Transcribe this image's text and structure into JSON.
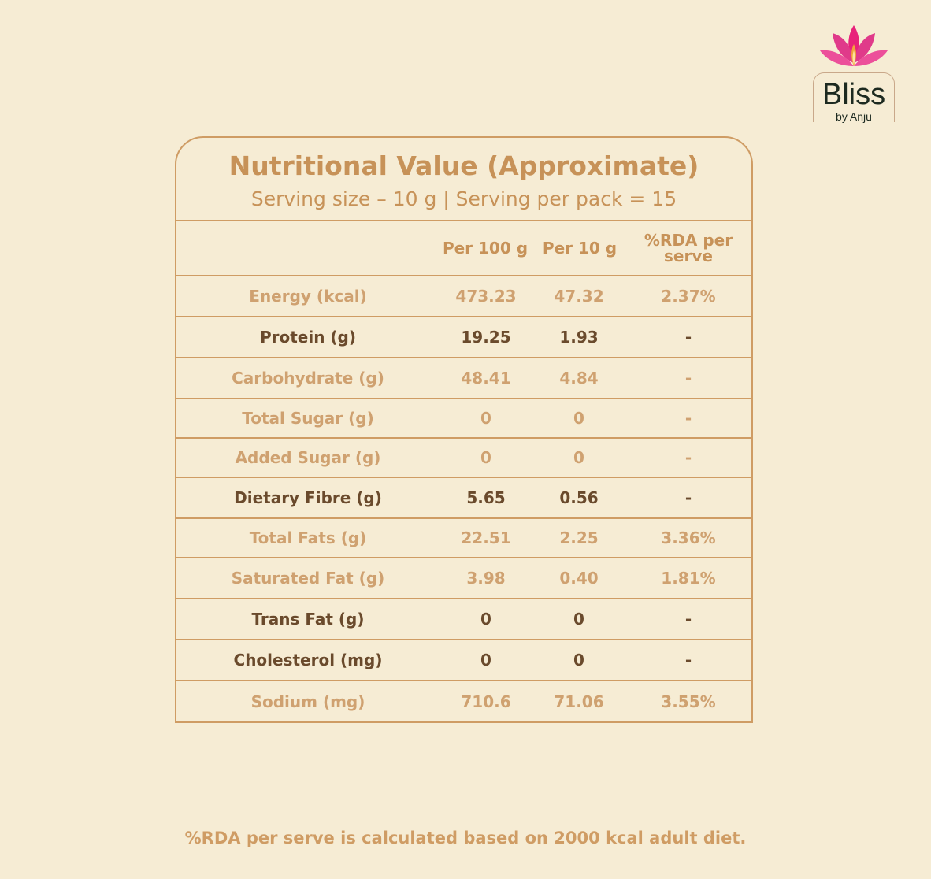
{
  "brand": {
    "name": "Bliss",
    "tagline": "by Anju",
    "colors": {
      "lotus": "#e8227a",
      "flame": "#f2a63a"
    }
  },
  "panel": {
    "title": "Nutritional Value (Approximate)",
    "subtitle": "Serving size – 10 g | Serving per pack = 15"
  },
  "table": {
    "headers": [
      "",
      "Per 100 g",
      "Per 10 g",
      "%RDA per serve"
    ],
    "rows": [
      {
        "nutrient": "Energy (kcal)",
        "per100": "473.23",
        "per10": "47.32",
        "rda": "2.37%",
        "emphasis": false
      },
      {
        "nutrient": "Protein (g)",
        "per100": "19.25",
        "per10": "1.93",
        "rda": "-",
        "emphasis": true
      },
      {
        "nutrient": "Carbohydrate (g)",
        "per100": "48.41",
        "per10": "4.84",
        "rda": "-",
        "emphasis": false
      },
      {
        "nutrient": "Total Sugar (g)",
        "per100": "0",
        "per10": "0",
        "rda": "-",
        "emphasis": false
      },
      {
        "nutrient": "Added Sugar (g)",
        "per100": "0",
        "per10": "0",
        "rda": "-",
        "emphasis": false
      },
      {
        "nutrient": "Dietary Fibre (g)",
        "per100": "5.65",
        "per10": "0.56",
        "rda": "-",
        "emphasis": true
      },
      {
        "nutrient": "Total Fats (g)",
        "per100": "22.51",
        "per10": "2.25",
        "rda": "3.36%",
        "emphasis": false
      },
      {
        "nutrient": "Saturated Fat (g)",
        "per100": "3.98",
        "per10": "0.40",
        "rda": "1.81%",
        "emphasis": false
      },
      {
        "nutrient": "Trans Fat (g)",
        "per100": "0",
        "per10": "0",
        "rda": "-",
        "emphasis": true
      },
      {
        "nutrient": "Cholesterol (mg)",
        "per100": "0",
        "per10": "0",
        "rda": "-",
        "emphasis": true
      },
      {
        "nutrient": "Sodium (mg)",
        "per100": "710.6",
        "per10": "71.06",
        "rda": "3.55%",
        "emphasis": false
      }
    ]
  },
  "footnote": "%RDA per serve is calculated based on 2000 kcal adult diet."
}
